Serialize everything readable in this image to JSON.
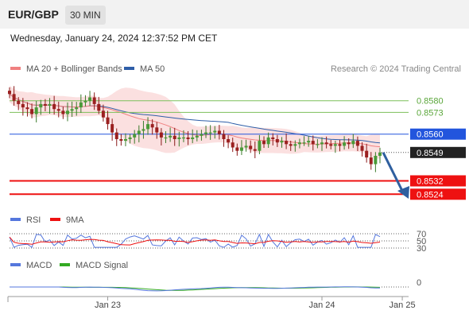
{
  "header": {
    "symbol": "EUR/GBP",
    "timeframe": "30 MIN",
    "datetime": "Wednesday, January 24, 2024 12:37:52 PM CET"
  },
  "chart_data": {
    "type": "candlestick",
    "price_panel": {
      "legend": [
        {
          "label": "MA 20 + Bollinger Bands",
          "color": "#f08080"
        },
        {
          "label": "MA 50",
          "color": "#2e5ea8"
        }
      ],
      "credit": "Research © 2024 Trading Central",
      "levels": [
        {
          "value": 0.858,
          "label": "0.8580",
          "color": "#7cbf5a",
          "kind": "resistance"
        },
        {
          "value": 0.8573,
          "label": "0.8573",
          "color": "#7cbf5a",
          "kind": "resistance"
        },
        {
          "value": 0.856,
          "label": "0.8560",
          "color": "#2255dd",
          "kind": "pivot"
        },
        {
          "value": 0.8549,
          "label": "0.8549",
          "color": "#222222",
          "kind": "last"
        },
        {
          "value": 0.8532,
          "label": "0.8532",
          "color": "#ee1111",
          "kind": "support"
        },
        {
          "value": 0.8524,
          "label": "0.8524",
          "color": "#ee1111",
          "kind": "support"
        }
      ],
      "closes": [
        0.8584,
        0.858,
        0.8578,
        0.8576,
        0.8575,
        0.8572,
        0.8576,
        0.8578,
        0.8577,
        0.8578,
        0.8575,
        0.8574,
        0.8572,
        0.8574,
        0.8575,
        0.8576,
        0.8579,
        0.858,
        0.8582,
        0.8578,
        0.8574,
        0.857,
        0.8566,
        0.8561,
        0.8557,
        0.8556,
        0.8557,
        0.8558,
        0.856,
        0.8562,
        0.8563,
        0.8566,
        0.8564,
        0.8561,
        0.8558,
        0.8558,
        0.8559,
        0.8557,
        0.8558,
        0.8558,
        0.8557,
        0.8558,
        0.8559,
        0.856,
        0.8561,
        0.8561,
        0.8562,
        0.856,
        0.8557,
        0.8555,
        0.8552,
        0.855,
        0.8552,
        0.8553,
        0.8551,
        0.855,
        0.8556,
        0.8554,
        0.8558,
        0.8557,
        0.8555,
        0.8556,
        0.8554,
        0.8553,
        0.8554,
        0.8555,
        0.8555,
        0.8556,
        0.8554,
        0.8554,
        0.8555,
        0.8554,
        0.8553,
        0.8554,
        0.8553,
        0.8555,
        0.8554,
        0.8556,
        0.8553,
        0.855,
        0.8546,
        0.8542,
        0.8547,
        0.8549
      ],
      "ylim": [
        0.8518,
        0.859
      ]
    },
    "rsi_panel": {
      "legend": [
        {
          "label": "RSI",
          "color": "#5577dd"
        },
        {
          "label": "9MA",
          "color": "#ee1111"
        }
      ],
      "levels": [
        70,
        50,
        30
      ],
      "ylim": [
        20,
        80
      ]
    },
    "macd_panel": {
      "legend": [
        {
          "label": "MACD",
          "color": "#5577dd"
        },
        {
          "label": "MACD Signal",
          "color": "#33aa22"
        }
      ],
      "zero_label": "0"
    },
    "x_axis": {
      "ticks": [
        {
          "label": "Jan 23",
          "index": 22
        },
        {
          "label": "Jan 24",
          "index": 70
        },
        {
          "label": "Jan 25",
          "index": 88
        }
      ]
    }
  }
}
